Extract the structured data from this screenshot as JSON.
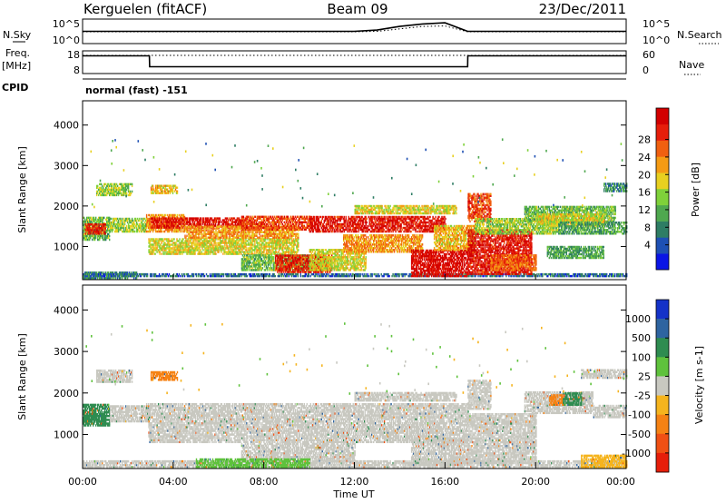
{
  "header": {
    "station": "Kerguelen (fitACF)",
    "beam": "Beam 09",
    "date": "23/Dec/2011"
  },
  "side_labels": {
    "nsky": "N.Sky",
    "nsearch": "N.Search",
    "freq": "Freq.",
    "freq_unit": "[MHz]",
    "nave": "Nave",
    "cpid": "CPID",
    "cpid_value": "normal (fast) -151"
  },
  "chart_data": [
    {
      "type": "line",
      "panel": "noise",
      "left_ticks": [
        "10^5",
        "10^0"
      ],
      "right_ticks": [
        "10^5",
        "10^0"
      ],
      "series": [
        {
          "name": "N.Sky",
          "style": "solid",
          "x": [
            0,
            2,
            4,
            6,
            8,
            10,
            12,
            13,
            14,
            15,
            16,
            17,
            18,
            20,
            22,
            24
          ],
          "y": [
            0.5,
            0.5,
            0.5,
            0.5,
            0.5,
            0.5,
            0.5,
            0.55,
            0.7,
            0.8,
            0.85,
            0.5,
            0.5,
            0.5,
            0.5,
            0.5
          ]
        },
        {
          "name": "N.Search",
          "style": "dotted",
          "x": [
            0,
            2,
            4,
            6,
            8,
            10,
            12,
            13,
            14,
            15,
            16,
            17,
            18,
            20,
            22,
            24
          ],
          "y": [
            0.48,
            0.48,
            0.48,
            0.48,
            0.48,
            0.48,
            0.48,
            0.5,
            0.6,
            0.7,
            0.72,
            0.48,
            0.48,
            0.48,
            0.48,
            0.48
          ]
        }
      ]
    },
    {
      "type": "line",
      "panel": "frequency",
      "left_ticks": [
        "18",
        "8"
      ],
      "right_ticks": [
        "60",
        "0"
      ],
      "series": [
        {
          "name": "Freq.",
          "style": "solid",
          "x": [
            0,
            2.95,
            2.96,
            17.0,
            17.01,
            24
          ],
          "y": [
            0.78,
            0.78,
            0.3,
            0.3,
            0.78,
            0.78
          ]
        },
        {
          "name": "Nave",
          "style": "dotted",
          "x": [
            0,
            24
          ],
          "y": [
            0.8,
            0.8
          ]
        }
      ]
    },
    {
      "type": "heatmap",
      "panel": "power",
      "xlabel": "",
      "ylabel": "Slant Range [km]",
      "y_ticks": [
        1000,
        2000,
        3000,
        4000
      ],
      "ylim": [
        180,
        4600
      ],
      "xlim": [
        0,
        24
      ],
      "colorbar": {
        "label": "Power [dB]",
        "ticks": [
          "4",
          "8",
          "12",
          "16",
          "20",
          "24",
          "28"
        ],
        "colors": [
          "#0a14e6",
          "#1e50b4",
          "#2e7d64",
          "#4fa84f",
          "#7fd13a",
          "#e8d020",
          "#f59b14",
          "#f06010",
          "#e61e0a",
          "#d20000"
        ]
      },
      "regions": [
        {
          "t0": 0,
          "t1": 2.4,
          "r0": 200,
          "r1": 380,
          "value": 8
        },
        {
          "t0": 0,
          "t1": 24,
          "r0": 250,
          "r1": 330,
          "value": 6
        },
        {
          "t0": 0,
          "t1": 1.2,
          "r0": 1150,
          "r1": 1700,
          "value": 12
        },
        {
          "t0": 0.1,
          "t1": 1.0,
          "r0": 1300,
          "r1": 1550,
          "value": 26
        },
        {
          "t0": 0.6,
          "t1": 2.2,
          "r0": 2250,
          "r1": 2550,
          "value": 14
        },
        {
          "t0": 1.2,
          "t1": 2.8,
          "r0": 1350,
          "r1": 1700,
          "value": 14
        },
        {
          "t0": 2.8,
          "t1": 4.5,
          "r0": 1350,
          "r1": 1800,
          "value": 20
        },
        {
          "t0": 3.0,
          "t1": 7.5,
          "r0": 1450,
          "r1": 1700,
          "value": 27
        },
        {
          "t0": 3.0,
          "t1": 4.2,
          "r0": 2300,
          "r1": 2500,
          "value": 18
        },
        {
          "t0": 2.9,
          "t1": 9.5,
          "r0": 800,
          "r1": 1200,
          "value": 16
        },
        {
          "t0": 4.5,
          "t1": 9.5,
          "r0": 1200,
          "r1": 1500,
          "value": 20
        },
        {
          "t0": 7.0,
          "t1": 10.0,
          "r0": 1400,
          "r1": 1750,
          "value": 24
        },
        {
          "t0": 7.0,
          "t1": 10.5,
          "r0": 400,
          "r1": 800,
          "value": 12
        },
        {
          "t0": 8.5,
          "t1": 11.0,
          "r0": 350,
          "r1": 800,
          "value": 26
        },
        {
          "t0": 10.0,
          "t1": 12.5,
          "r0": 400,
          "r1": 900,
          "value": 16
        },
        {
          "t0": 10.0,
          "t1": 16.0,
          "r0": 1350,
          "r1": 1750,
          "value": 27
        },
        {
          "t0": 11.5,
          "t1": 15.0,
          "r0": 850,
          "r1": 1300,
          "value": 20
        },
        {
          "t0": 12.0,
          "t1": 16.5,
          "r0": 1800,
          "r1": 2000,
          "value": 16
        },
        {
          "t0": 14.5,
          "t1": 17.0,
          "r0": 250,
          "r1": 900,
          "value": 28
        },
        {
          "t0": 15.5,
          "t1": 17.3,
          "r0": 900,
          "r1": 1500,
          "value": 18
        },
        {
          "t0": 17.0,
          "t1": 19.8,
          "r0": 300,
          "r1": 1400,
          "value": 27
        },
        {
          "t0": 17.0,
          "t1": 18.0,
          "r0": 1600,
          "r1": 2300,
          "value": 24
        },
        {
          "t0": 17.3,
          "t1": 21.0,
          "r0": 1300,
          "r1": 1700,
          "value": 14
        },
        {
          "t0": 18.0,
          "t1": 20.0,
          "r0": 400,
          "r1": 800,
          "value": 22
        },
        {
          "t0": 19.5,
          "t1": 23.5,
          "r0": 1600,
          "r1": 2000,
          "value": 12
        },
        {
          "t0": 20.0,
          "t1": 23.0,
          "r0": 1500,
          "r1": 1800,
          "value": 16
        },
        {
          "t0": 21.0,
          "t1": 24.0,
          "r0": 1300,
          "r1": 1600,
          "value": 10
        },
        {
          "t0": 23.0,
          "t1": 24.0,
          "r0": 2350,
          "r1": 2550,
          "value": 8
        },
        {
          "t0": 20.5,
          "t1": 23.0,
          "r0": 700,
          "r1": 1000,
          "value": 10
        }
      ]
    },
    {
      "type": "heatmap",
      "panel": "velocity",
      "xlabel": "Time UT",
      "ylabel": "Slant Range [km]",
      "y_ticks": [
        1000,
        2000,
        3000,
        4000
      ],
      "ylim": [
        180,
        4600
      ],
      "xlim": [
        0,
        24
      ],
      "x_ticks": [
        "00:00",
        "04:00",
        "08:00",
        "12:00",
        "16:00",
        "20:00",
        "00:00"
      ],
      "colorbar": {
        "label": "Velocity [m s-1]",
        "ticks": [
          "1000",
          "500",
          "100",
          "25",
          "-25",
          "-100",
          "-500",
          "-1000"
        ],
        "colors": [
          "#1432c8",
          "#2e64a0",
          "#2e8c50",
          "#5fc23c",
          "#c8c8c0",
          "#f5b41e",
          "#f58214",
          "#f05014",
          "#e61e0a"
        ]
      },
      "regions": [
        {
          "t0": 0,
          "t1": 24,
          "r0": 200,
          "r1": 350,
          "value": 0
        },
        {
          "t0": 0,
          "t1": 1.2,
          "r0": 1200,
          "r1": 1700,
          "value": 150
        },
        {
          "t0": 0,
          "t1": 1.0,
          "r0": 1300,
          "r1": 1500,
          "value": 300
        },
        {
          "t0": 1.2,
          "t1": 3.0,
          "r0": 1300,
          "r1": 1700,
          "value": 0
        },
        {
          "t0": 0.6,
          "t1": 2.2,
          "r0": 2250,
          "r1": 2550,
          "value": 0
        },
        {
          "t0": 2.8,
          "t1": 17.0,
          "r0": 1350,
          "r1": 1750,
          "value": 0
        },
        {
          "t0": 2.9,
          "t1": 17.0,
          "r0": 800,
          "r1": 1300,
          "value": 0
        },
        {
          "t0": 7.0,
          "t1": 12.0,
          "r0": 350,
          "r1": 800,
          "value": 0
        },
        {
          "t0": 3.0,
          "t1": 4.2,
          "r0": 2300,
          "r1": 2500,
          "value": -150
        },
        {
          "t0": 5.0,
          "t1": 10.0,
          "r0": 200,
          "r1": 400,
          "value": 60
        },
        {
          "t0": 12.0,
          "t1": 16.5,
          "r0": 1800,
          "r1": 2000,
          "value": 0
        },
        {
          "t0": 14.5,
          "t1": 17.0,
          "r0": 250,
          "r1": 900,
          "value": 0
        },
        {
          "t0": 17.0,
          "t1": 20.0,
          "r0": 300,
          "r1": 1500,
          "value": 0
        },
        {
          "t0": 17.0,
          "t1": 18.0,
          "r0": 1600,
          "r1": 2300,
          "value": 0
        },
        {
          "t0": 19.5,
          "t1": 22.5,
          "r0": 1500,
          "r1": 2000,
          "value": 0
        },
        {
          "t0": 20.6,
          "t1": 21.2,
          "r0": 1700,
          "r1": 1950,
          "value": -300
        },
        {
          "t0": 21.2,
          "t1": 22.0,
          "r0": 1700,
          "r1": 2000,
          "value": 150
        },
        {
          "t0": 22.0,
          "t1": 24.0,
          "r0": 2350,
          "r1": 2550,
          "value": 0
        },
        {
          "t0": 22.5,
          "t1": 24.0,
          "r0": 1400,
          "r1": 1700,
          "value": 0
        },
        {
          "t0": 22.0,
          "t1": 24.0,
          "r0": 200,
          "r1": 500,
          "value": -60
        }
      ]
    }
  ]
}
